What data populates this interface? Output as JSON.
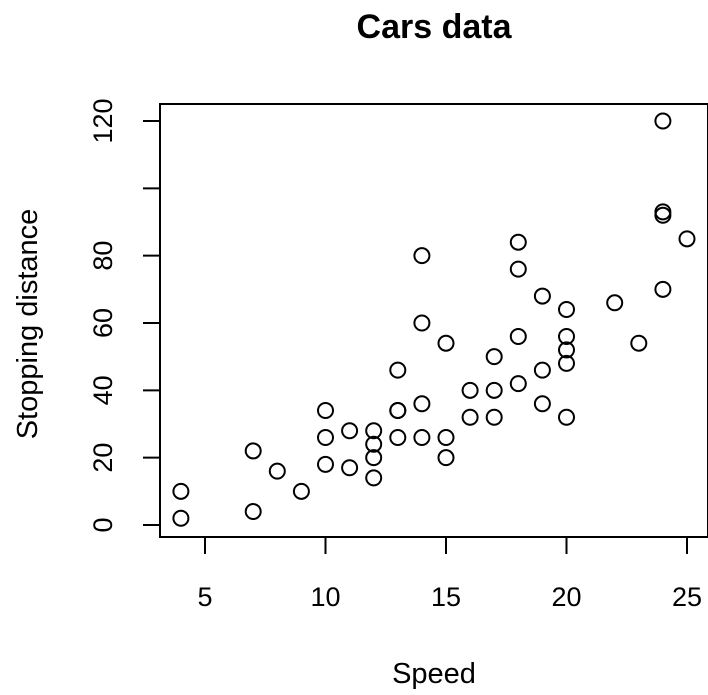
{
  "chart_data": {
    "type": "scatter",
    "title": "Cars data",
    "xlabel": "Speed",
    "ylabel": "Stopping distance",
    "xlim": [
      3.5,
      25.5
    ],
    "ylim": [
      -2,
      122
    ],
    "x_ticks": [
      5,
      10,
      15,
      20,
      25
    ],
    "x_tick_labels": [
      "5",
      "10",
      "15",
      "20",
      "25"
    ],
    "y_ticks": [
      0,
      20,
      40,
      60,
      80,
      100,
      120
    ],
    "y_tick_labels": [
      "0",
      "20",
      "40",
      "60",
      "80",
      "",
      "120"
    ],
    "grid": false,
    "marker": "open-circle",
    "colors": {
      "marker": "#000000",
      "text": "#000000",
      "background": "#ffffff"
    },
    "points": [
      {
        "x": 4,
        "y": 2
      },
      {
        "x": 4,
        "y": 10
      },
      {
        "x": 7,
        "y": 4
      },
      {
        "x": 7,
        "y": 22
      },
      {
        "x": 8,
        "y": 16
      },
      {
        "x": 9,
        "y": 10
      },
      {
        "x": 10,
        "y": 18
      },
      {
        "x": 10,
        "y": 26
      },
      {
        "x": 10,
        "y": 34
      },
      {
        "x": 11,
        "y": 17
      },
      {
        "x": 11,
        "y": 28
      },
      {
        "x": 12,
        "y": 14
      },
      {
        "x": 12,
        "y": 20
      },
      {
        "x": 12,
        "y": 24
      },
      {
        "x": 12,
        "y": 28
      },
      {
        "x": 13,
        "y": 26
      },
      {
        "x": 13,
        "y": 34
      },
      {
        "x": 13,
        "y": 34
      },
      {
        "x": 13,
        "y": 46
      },
      {
        "x": 14,
        "y": 26
      },
      {
        "x": 14,
        "y": 36
      },
      {
        "x": 14,
        "y": 60
      },
      {
        "x": 14,
        "y": 80
      },
      {
        "x": 15,
        "y": 20
      },
      {
        "x": 15,
        "y": 26
      },
      {
        "x": 15,
        "y": 54
      },
      {
        "x": 16,
        "y": 32
      },
      {
        "x": 16,
        "y": 40
      },
      {
        "x": 17,
        "y": 32
      },
      {
        "x": 17,
        "y": 40
      },
      {
        "x": 17,
        "y": 50
      },
      {
        "x": 18,
        "y": 42
      },
      {
        "x": 18,
        "y": 56
      },
      {
        "x": 18,
        "y": 76
      },
      {
        "x": 18,
        "y": 84
      },
      {
        "x": 19,
        "y": 36
      },
      {
        "x": 19,
        "y": 46
      },
      {
        "x": 19,
        "y": 68
      },
      {
        "x": 20,
        "y": 32
      },
      {
        "x": 20,
        "y": 48
      },
      {
        "x": 20,
        "y": 52
      },
      {
        "x": 20,
        "y": 56
      },
      {
        "x": 20,
        "y": 64
      },
      {
        "x": 22,
        "y": 66
      },
      {
        "x": 23,
        "y": 54
      },
      {
        "x": 24,
        "y": 70
      },
      {
        "x": 24,
        "y": 92
      },
      {
        "x": 24,
        "y": 93
      },
      {
        "x": 24,
        "y": 120
      },
      {
        "x": 25,
        "y": 85
      }
    ]
  }
}
